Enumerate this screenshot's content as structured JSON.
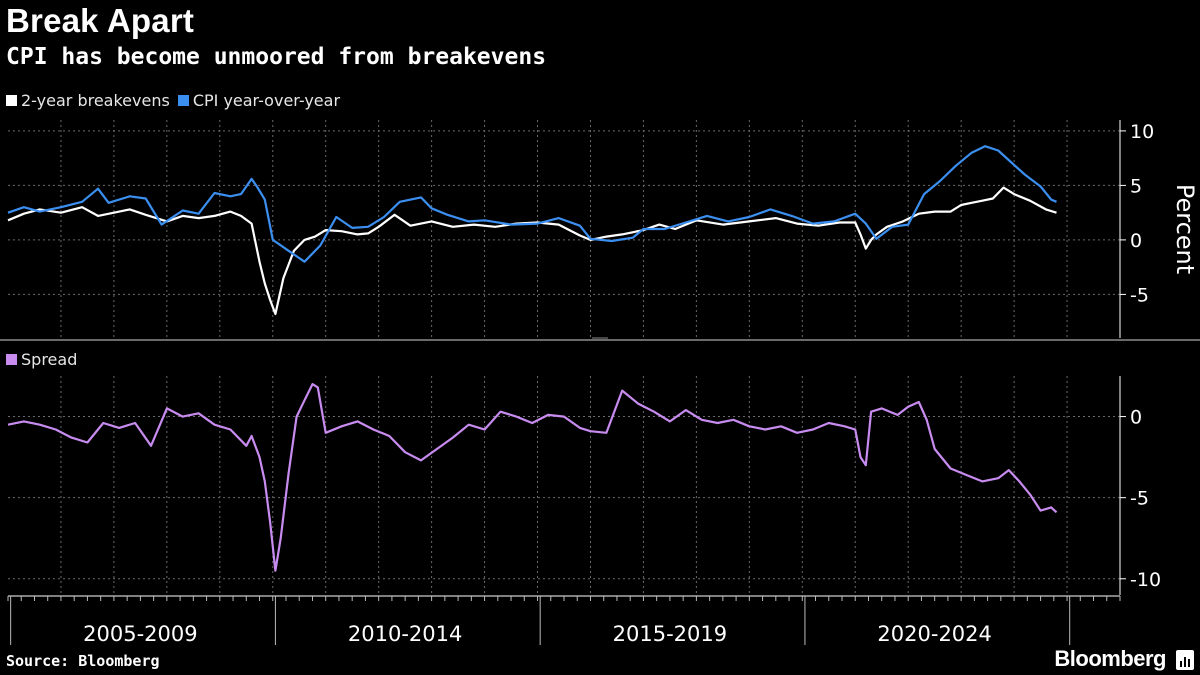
{
  "title": "Break Apart",
  "subtitle": "CPI has become unmoored from breakevens",
  "source": "Source: Bloomberg",
  "brand": "Bloomberg",
  "colors": {
    "breakevens": "#ffffff",
    "cpi": "#3b8ff0",
    "spread": "#c88cf0",
    "grid": "#5a5a5a"
  },
  "chart_data": [
    {
      "type": "line",
      "ylabel": "Percent",
      "ylim": [
        -9,
        11
      ],
      "yticks": [
        10,
        5,
        0,
        -5
      ],
      "ytick_labels": [
        "10",
        "5",
        "0",
        "-5"
      ],
      "x_range": [
        2004.0,
        2023.8
      ],
      "legend": [
        {
          "name": "2-year breakevens",
          "color": "#ffffff"
        },
        {
          "name": "CPI year-over-year",
          "color": "#3b8ff0"
        }
      ],
      "series": [
        {
          "name": "2-year breakevens",
          "color": "#ffffff",
          "x": [
            2004.0,
            2004.3,
            2004.6,
            2005.0,
            2005.4,
            2005.7,
            2006.0,
            2006.3,
            2006.6,
            2007.0,
            2007.3,
            2007.6,
            2007.9,
            2008.2,
            2008.4,
            2008.6,
            2008.75,
            2008.85,
            2008.95,
            2009.05,
            2009.2,
            2009.4,
            2009.6,
            2009.8,
            2010.0,
            2010.3,
            2010.6,
            2010.8,
            2011.0,
            2011.3,
            2011.6,
            2012.0,
            2012.4,
            2012.8,
            2013.2,
            2013.6,
            2014.0,
            2014.4,
            2014.8,
            2015.0,
            2015.3,
            2015.6,
            2016.0,
            2016.3,
            2016.6,
            2017.0,
            2017.5,
            2018.0,
            2018.5,
            2018.9,
            2019.3,
            2019.7,
            2020.0,
            2020.1,
            2020.2,
            2020.3,
            2020.4,
            2020.6,
            2020.9,
            2021.2,
            2021.5,
            2021.8,
            2022.0,
            2022.2,
            2022.4,
            2022.6,
            2022.8,
            2023.0,
            2023.3,
            2023.6,
            2023.8
          ],
          "values": [
            1.8,
            2.4,
            2.8,
            2.5,
            3.0,
            2.2,
            2.5,
            2.8,
            2.3,
            1.7,
            2.2,
            2.0,
            2.2,
            2.6,
            2.2,
            1.5,
            -2.0,
            -4.0,
            -5.5,
            -6.8,
            -3.5,
            -1.0,
            0.0,
            0.3,
            0.9,
            0.8,
            0.5,
            0.6,
            1.2,
            2.3,
            1.3,
            1.7,
            1.2,
            1.4,
            1.2,
            1.5,
            1.6,
            1.4,
            0.4,
            0.0,
            0.3,
            0.5,
            0.9,
            1.4,
            1.0,
            1.8,
            1.4,
            1.7,
            2.0,
            1.5,
            1.3,
            1.6,
            1.6,
            0.5,
            -0.8,
            0.0,
            0.5,
            1.2,
            1.7,
            2.4,
            2.6,
            2.6,
            3.2,
            3.4,
            3.6,
            3.8,
            4.8,
            4.2,
            3.6,
            2.8,
            2.5
          ]
        },
        {
          "name": "CPI year-over-year",
          "color": "#3b8ff0",
          "x": [
            2004.0,
            2004.3,
            2004.6,
            2005.0,
            2005.4,
            2005.7,
            2005.9,
            2006.3,
            2006.6,
            2006.9,
            2007.3,
            2007.6,
            2007.9,
            2008.2,
            2008.4,
            2008.6,
            2008.7,
            2008.85,
            2009.0,
            2009.3,
            2009.6,
            2009.9,
            2010.2,
            2010.5,
            2010.8,
            2011.1,
            2011.4,
            2011.8,
            2012.0,
            2012.3,
            2012.7,
            2013.0,
            2013.5,
            2014.0,
            2014.4,
            2014.8,
            2015.0,
            2015.4,
            2015.8,
            2016.0,
            2016.4,
            2016.8,
            2017.2,
            2017.6,
            2018.0,
            2018.4,
            2018.8,
            2019.2,
            2019.6,
            2020.0,
            2020.2,
            2020.4,
            2020.7,
            2021.0,
            2021.3,
            2021.6,
            2021.9,
            2022.2,
            2022.45,
            2022.7,
            2022.95,
            2023.2,
            2023.5,
            2023.7,
            2023.8
          ],
          "values": [
            2.5,
            3.0,
            2.6,
            3.0,
            3.5,
            4.7,
            3.4,
            4.0,
            3.8,
            1.4,
            2.7,
            2.4,
            4.3,
            4.0,
            4.2,
            5.6,
            4.9,
            3.7,
            0.0,
            -1.0,
            -2.0,
            -0.5,
            2.1,
            1.1,
            1.2,
            2.1,
            3.5,
            3.9,
            2.9,
            2.3,
            1.7,
            1.8,
            1.4,
            1.5,
            2.0,
            1.3,
            0.1,
            -0.1,
            0.2,
            1.0,
            1.0,
            1.6,
            2.2,
            1.7,
            2.1,
            2.8,
            2.2,
            1.5,
            1.7,
            2.4,
            1.5,
            0.1,
            1.2,
            1.4,
            4.2,
            5.4,
            6.8,
            8.0,
            8.6,
            8.2,
            7.1,
            6.0,
            4.9,
            3.7,
            3.5
          ]
        }
      ]
    },
    {
      "type": "line",
      "ylabel": "",
      "ylim": [
        -11,
        2.5
      ],
      "yticks": [
        0,
        -5,
        -10
      ],
      "ytick_labels": [
        "0",
        "-5",
        "-10"
      ],
      "x_range": [
        2004.0,
        2023.8
      ],
      "legend": [
        {
          "name": "Spread",
          "color": "#c88cf0"
        }
      ],
      "series": [
        {
          "name": "Spread",
          "color": "#c88cf0",
          "x": [
            2004.0,
            2004.3,
            2004.6,
            2004.9,
            2005.2,
            2005.5,
            2005.8,
            2006.1,
            2006.4,
            2006.7,
            2007.0,
            2007.3,
            2007.6,
            2007.9,
            2008.2,
            2008.5,
            2008.6,
            2008.75,
            2008.85,
            2008.95,
            2009.05,
            2009.15,
            2009.3,
            2009.45,
            2009.6,
            2009.75,
            2009.85,
            2010.0,
            2010.3,
            2010.6,
            2010.9,
            2011.2,
            2011.5,
            2011.8,
            2012.1,
            2012.4,
            2012.7,
            2013.0,
            2013.3,
            2013.6,
            2013.9,
            2014.2,
            2014.5,
            2014.8,
            2015.0,
            2015.3,
            2015.6,
            2015.9,
            2016.2,
            2016.5,
            2016.8,
            2017.1,
            2017.4,
            2017.7,
            2018.0,
            2018.3,
            2018.6,
            2018.9,
            2019.2,
            2019.5,
            2019.8,
            2020.0,
            2020.1,
            2020.2,
            2020.3,
            2020.5,
            2020.8,
            2021.0,
            2021.2,
            2021.35,
            2021.5,
            2021.8,
            2022.1,
            2022.4,
            2022.7,
            2022.9,
            2023.1,
            2023.3,
            2023.5,
            2023.7,
            2023.8
          ],
          "values": [
            -0.5,
            -0.3,
            -0.5,
            -0.8,
            -1.3,
            -1.6,
            -0.4,
            -0.7,
            -0.4,
            -1.8,
            0.5,
            0.0,
            0.2,
            -0.5,
            -0.8,
            -1.8,
            -1.2,
            -2.5,
            -4.0,
            -6.5,
            -9.5,
            -7.5,
            -3.5,
            0.0,
            1.0,
            2.0,
            1.8,
            -1.0,
            -0.6,
            -0.3,
            -0.8,
            -1.2,
            -2.2,
            -2.7,
            -2.0,
            -1.3,
            -0.5,
            -0.8,
            0.3,
            0.0,
            -0.4,
            0.1,
            0.0,
            -0.7,
            -0.9,
            -1.0,
            1.6,
            0.8,
            0.3,
            -0.3,
            0.4,
            -0.2,
            -0.4,
            -0.2,
            -0.6,
            -0.8,
            -0.6,
            -1.0,
            -0.8,
            -0.4,
            -0.6,
            -0.8,
            -2.5,
            -3.0,
            0.3,
            0.5,
            0.1,
            0.6,
            0.9,
            -0.2,
            -2.0,
            -3.2,
            -3.6,
            -4.0,
            -3.8,
            -3.3,
            -4.0,
            -4.8,
            -5.8,
            -5.6,
            -5.9
          ]
        }
      ]
    }
  ],
  "x_axis": {
    "period_labels": [
      "2005-2009",
      "2010-2014",
      "2015-2019",
      "2020-2024"
    ],
    "dividers": [
      2004.0,
      2009.0,
      2014.0,
      2019.0,
      2024.0
    ]
  }
}
